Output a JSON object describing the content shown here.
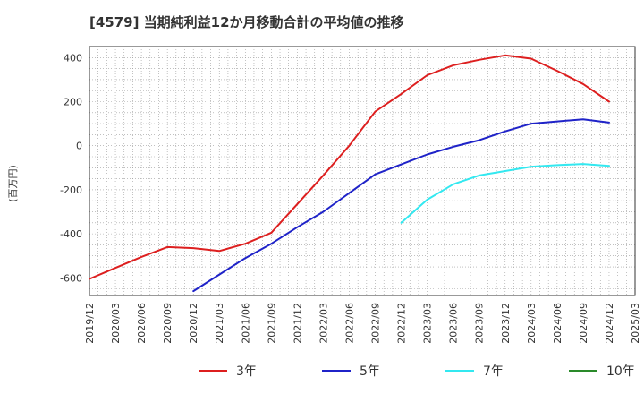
{
  "chart_data": {
    "type": "line",
    "title": "[4579]  当期純利益12か月移動合計の平均値の推移",
    "ylabel": "(百万円)",
    "xlabel": "",
    "ylim": [
      -680,
      450
    ],
    "yticks": [
      400,
      200,
      0,
      -200,
      -400,
      -600
    ],
    "x_ticks": [
      "2019/12",
      "2020/03",
      "2020/06",
      "2020/09",
      "2020/12",
      "2021/03",
      "2021/06",
      "2021/09",
      "2021/12",
      "2022/03",
      "2022/06",
      "2022/09",
      "2022/12",
      "2023/03",
      "2023/06",
      "2023/09",
      "2023/12",
      "2024/03",
      "2024/06",
      "2024/09",
      "2024/12",
      "2025/03"
    ],
    "grid": true,
    "legend_position": "bottom",
    "x": [
      "2019/12",
      "2020/03",
      "2020/06",
      "2020/09",
      "2020/12",
      "2021/03",
      "2021/06",
      "2021/09",
      "2021/12",
      "2022/03",
      "2022/06",
      "2022/09",
      "2022/12",
      "2023/03",
      "2023/06",
      "2023/09",
      "2023/12",
      "2024/03",
      "2024/06",
      "2024/09",
      "2024/12"
    ],
    "series": [
      {
        "name": "3年",
        "color": "#dd1f1f",
        "values": [
          -605,
          -555,
          -505,
          -460,
          -465,
          -478,
          -445,
          -395,
          -265,
          -135,
          0,
          155,
          235,
          320,
          365,
          390,
          410,
          395,
          340,
          280,
          200
        ]
      },
      {
        "name": "5年",
        "color": "#1f23c8",
        "values": [
          null,
          null,
          null,
          null,
          -660,
          -585,
          -510,
          -445,
          -370,
          -300,
          -215,
          -130,
          -85,
          -40,
          -5,
          25,
          65,
          100,
          110,
          120,
          105
        ]
      },
      {
        "name": "7年",
        "color": "#33e8f0",
        "values": [
          null,
          null,
          null,
          null,
          null,
          null,
          null,
          null,
          null,
          null,
          null,
          null,
          -350,
          -245,
          -175,
          -135,
          -115,
          -95,
          -88,
          -83,
          -92
        ]
      },
      {
        "name": "10年",
        "color": "#2a8a2a",
        "values": [
          null,
          null,
          null,
          null,
          null,
          null,
          null,
          null,
          null,
          null,
          null,
          null,
          null,
          null,
          null,
          null,
          null,
          null,
          null,
          null,
          null
        ]
      }
    ]
  }
}
